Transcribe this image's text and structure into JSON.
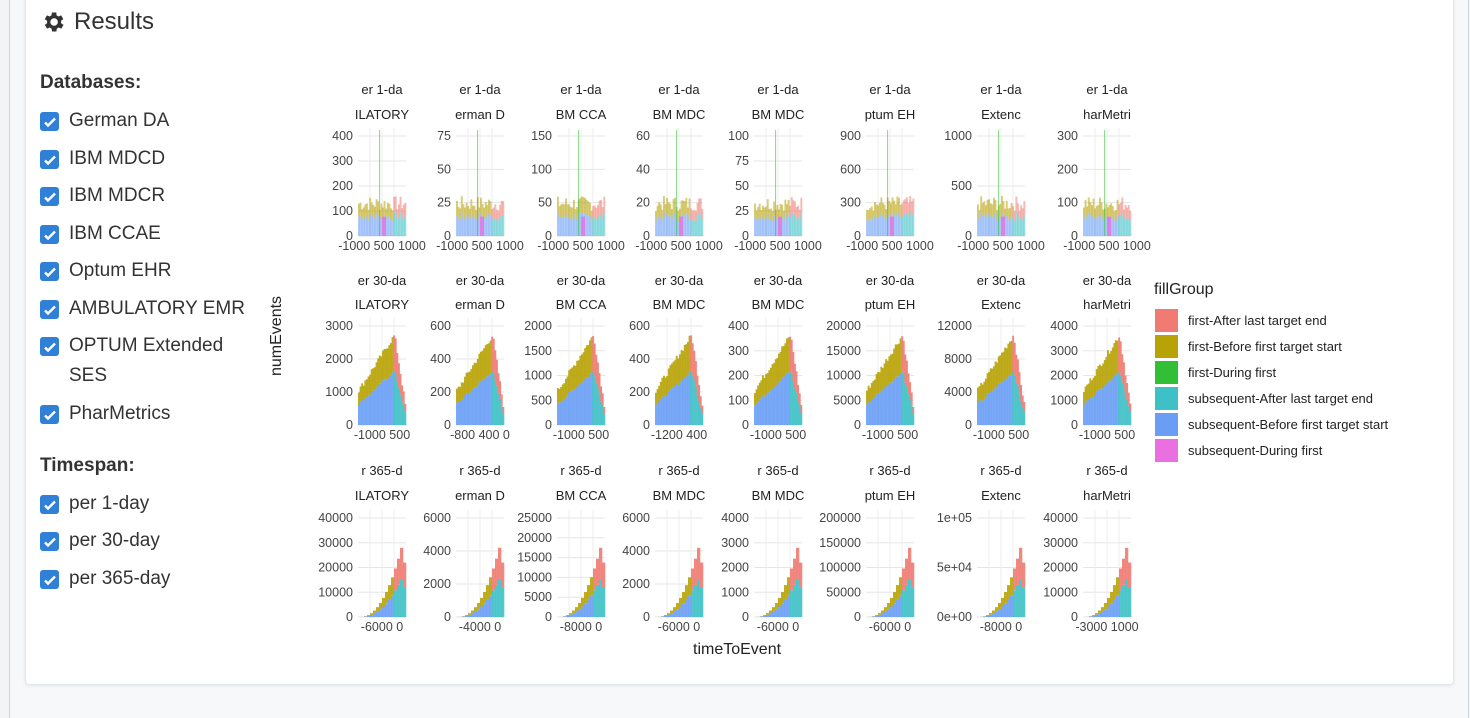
{
  "results": {
    "title": "Results",
    "icon": "gear-icon"
  },
  "databases": {
    "label": "Databases:",
    "items": [
      {
        "label": "German DA",
        "checked": true
      },
      {
        "label": "IBM MDCD",
        "checked": true
      },
      {
        "label": "IBM MDCR",
        "checked": true
      },
      {
        "label": "IBM CCAE",
        "checked": true
      },
      {
        "label": "Optum EHR",
        "checked": true
      },
      {
        "label": "AMBULATORY EMR",
        "checked": true
      },
      {
        "label": "OPTUM Extended SES",
        "checked": true
      },
      {
        "label": "PharMetrics",
        "checked": true
      }
    ]
  },
  "timespan": {
    "label": "Timespan:",
    "items": [
      {
        "label": "per 1-day",
        "checked": true
      },
      {
        "label": "per 30-day",
        "checked": true
      },
      {
        "label": "per 365-day",
        "checked": true
      }
    ]
  },
  "chart_data": {
    "type": "bar",
    "xlabel": "timeToEvent",
    "ylabel": "numEvents",
    "legend_title": "fillGroup",
    "legend_placement": "right",
    "grid": true,
    "legend": [
      {
        "name": "first-After last target end",
        "color": "#f07b72"
      },
      {
        "name": "first-Before first target start",
        "color": "#b8a307"
      },
      {
        "name": "first-During first",
        "color": "#33bf35"
      },
      {
        "name": "subsequent-After last target end",
        "color": "#3ec1c6"
      },
      {
        "name": "subsequent-Before first target start",
        "color": "#6a9ef5"
      },
      {
        "name": "subsequent-During first",
        "color": "#ea6fe0"
      }
    ],
    "rows": [
      {
        "strip": "er 1-da",
        "yticks_per_panel": [
          [
            "400",
            "300",
            "200",
            "100",
            "0"
          ],
          [
            "75",
            "50",
            "25",
            "0"
          ],
          [
            "150",
            "100",
            "50",
            "0"
          ],
          [
            "60",
            "40",
            "20",
            "0"
          ],
          [
            "100",
            "75",
            "50",
            "25",
            "0"
          ],
          [
            "900",
            "600",
            "300",
            "0"
          ],
          [
            "1000",
            "500",
            "0"
          ],
          [
            "300",
            "200",
            "100",
            "0"
          ]
        ],
        "ymax": [
          400,
          90,
          170,
          65,
          100,
          1100,
          1400,
          330
        ],
        "xticks": [
          [
            "-1000",
            "500",
            "1000"
          ],
          [
            "-1000",
            "500",
            "1000"
          ],
          [
            "-1000",
            "500",
            "1000"
          ],
          [
            "-1000",
            "500",
            "1000"
          ],
          [
            "-1000",
            "500",
            "1000"
          ],
          [
            "-1000",
            "500",
            "1000"
          ],
          [
            "-1000",
            "500",
            "1000"
          ],
          [
            "-1000",
            "500",
            "1000"
          ]
        ]
      },
      {
        "strip": "er 30-da",
        "yticks_per_panel": [
          [
            "3000",
            "2000",
            "1000",
            "0"
          ],
          [
            "600",
            "400",
            "200",
            "0"
          ],
          [
            "2000",
            "1500",
            "1000",
            "500",
            "0"
          ],
          [
            "600",
            "400",
            "200",
            "0"
          ],
          [
            "400",
            "300",
            "200",
            "100",
            "0"
          ],
          [
            "20000",
            "15000",
            "10000",
            "5000",
            "0"
          ],
          [
            "12000",
            "8000",
            "4000",
            "0"
          ],
          [
            "4000",
            "3000",
            "2000",
            "1000",
            "0"
          ]
        ],
        "ymax": [
          3800,
          780,
          2400,
          680,
          420,
          20500,
          13000,
          4300
        ],
        "xticks": [
          [
            "-1000",
            "500"
          ],
          [
            "-800",
            "400",
            "0"
          ],
          [
            "-1000",
            "500"
          ],
          [
            "-1200",
            "400"
          ],
          [
            "-1000",
            "500"
          ],
          [
            "-1000",
            "500"
          ],
          [
            "-1000",
            "500"
          ],
          [
            "-1000",
            "500"
          ]
        ]
      },
      {
        "strip": "r 365-d",
        "yticks_per_panel": [
          [
            "40000",
            "30000",
            "20000",
            "10000",
            "0"
          ],
          [
            "6000",
            "4000",
            "2000",
            "0"
          ],
          [
            "25000",
            "20000",
            "15000",
            "10000",
            "5000",
            "0"
          ],
          [
            "6000",
            "4000",
            "2000",
            "0"
          ],
          [
            "4000",
            "3000",
            "2000",
            "1000",
            "0"
          ],
          [
            "200000",
            "150000",
            "100000",
            "50000",
            "0"
          ],
          [
            "1e+05",
            "5e+04",
            "0e+00"
          ],
          [
            "40000",
            "30000",
            "20000",
            "10000",
            "0"
          ]
        ],
        "ymax": [
          41000,
          7800,
          26000,
          7200,
          4700,
          205000,
          190000,
          46000
        ],
        "xticks": [
          [
            "-6000",
            "0"
          ],
          [
            "-4000",
            "0"
          ],
          [
            "-8000",
            "0"
          ],
          [
            "-6000",
            "0"
          ],
          [
            "-6000",
            "0"
          ],
          [
            "-6000",
            "0"
          ],
          [
            "-8000",
            "0"
          ],
          [
            "-3000",
            "1000"
          ]
        ]
      }
    ],
    "db_strips": [
      "ILATORY",
      "erman D",
      "BM CCA",
      "BM MDC",
      "BM MDC",
      "ptum EH",
      "Extenc",
      "harMetri"
    ]
  }
}
